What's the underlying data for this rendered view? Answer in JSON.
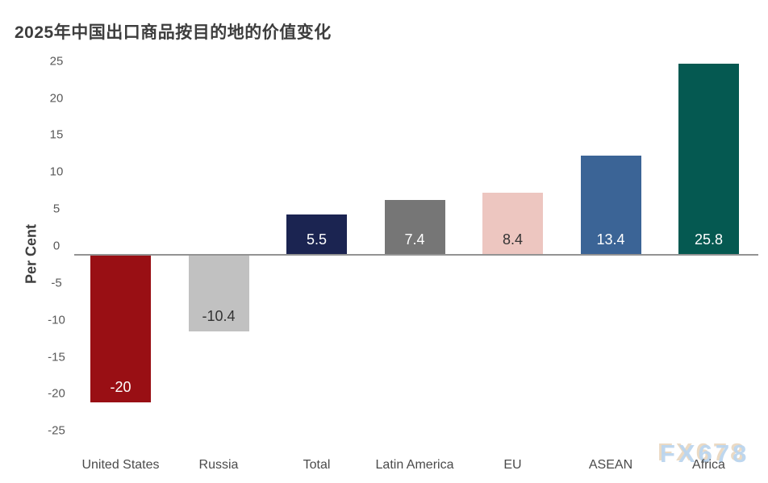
{
  "title": "2025年中国出口商品按目的地的价值变化",
  "watermark": "FX678",
  "chart_data": {
    "type": "bar",
    "title": "2025年中国出口商品按目的地的价值变化",
    "xlabel": "",
    "ylabel": "Per Cent",
    "ylim": [
      -25,
      25
    ],
    "yticks": [
      25,
      20,
      15,
      10,
      5,
      0,
      -5,
      -10,
      -15,
      -20,
      -25
    ],
    "grid": false,
    "legend": "none",
    "categories": [
      "United States",
      "Russia",
      "Total",
      "Latin America",
      "EU",
      "ASEAN",
      "Africa"
    ],
    "values": [
      -20,
      -10.4,
      5.5,
      7.4,
      8.4,
      13.4,
      25.8
    ],
    "value_labels": [
      "-20",
      "-10.4",
      "5.5",
      "7.4",
      "8.4",
      "13.4",
      "25.8"
    ],
    "bar_colors": [
      "#990f14",
      "#c1c1c1",
      "#1b2451",
      "#767676",
      "#edc6c0",
      "#3b6496",
      "#055951"
    ],
    "label_colors": [
      "#ffffff",
      "#333333",
      "#ffffff",
      "#ffffff",
      "#333333",
      "#ffffff",
      "#ffffff"
    ]
  },
  "colors": {
    "axis_line": "#939393",
    "title_text": "#3d3d3d",
    "tick_text": "#595959",
    "category_text": "#4a4a4a",
    "watermark_blue": "#bad5ee",
    "watermark_tan": "#e9d6be"
  }
}
